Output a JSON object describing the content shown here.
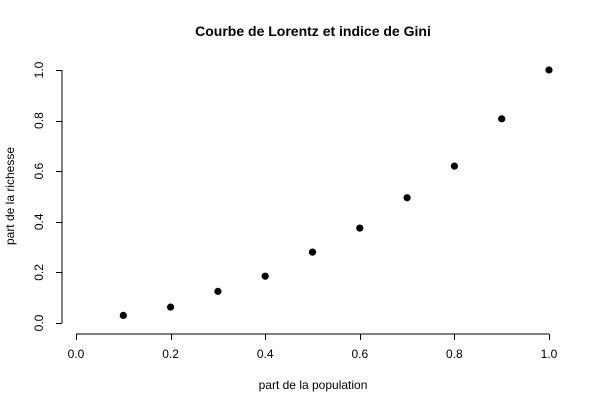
{
  "chart_data": {
    "type": "scatter",
    "title": "Courbe de Lorentz et indice de Gini",
    "xlabel": "part de la population",
    "ylabel": "part de la richesse",
    "xlim": [
      0.0,
      1.0
    ],
    "ylim": [
      0.0,
      1.0
    ],
    "x_ticks": [
      {
        "value": 0.0,
        "label": "0.0"
      },
      {
        "value": 0.2,
        "label": "0.2"
      },
      {
        "value": 0.4,
        "label": "0.4"
      },
      {
        "value": 0.6,
        "label": "0.6"
      },
      {
        "value": 0.8,
        "label": "0.8"
      },
      {
        "value": 1.0,
        "label": "1.0"
      }
    ],
    "y_ticks": [
      {
        "value": 0.0,
        "label": "0.0"
      },
      {
        "value": 0.2,
        "label": "0.2"
      },
      {
        "value": 0.4,
        "label": "0.4"
      },
      {
        "value": 0.6,
        "label": "0.6"
      },
      {
        "value": 0.8,
        "label": "0.8"
      },
      {
        "value": 1.0,
        "label": "1.0"
      }
    ],
    "grid": false,
    "point_color": "#000000",
    "series": [
      {
        "x": [
          0.1,
          0.2,
          0.3,
          0.4,
          0.5,
          0.6,
          0.7,
          0.8,
          0.9,
          1.0
        ],
        "y": [
          0.03,
          0.063,
          0.125,
          0.185,
          0.28,
          0.375,
          0.495,
          0.62,
          0.807,
          1.0
        ]
      }
    ]
  }
}
